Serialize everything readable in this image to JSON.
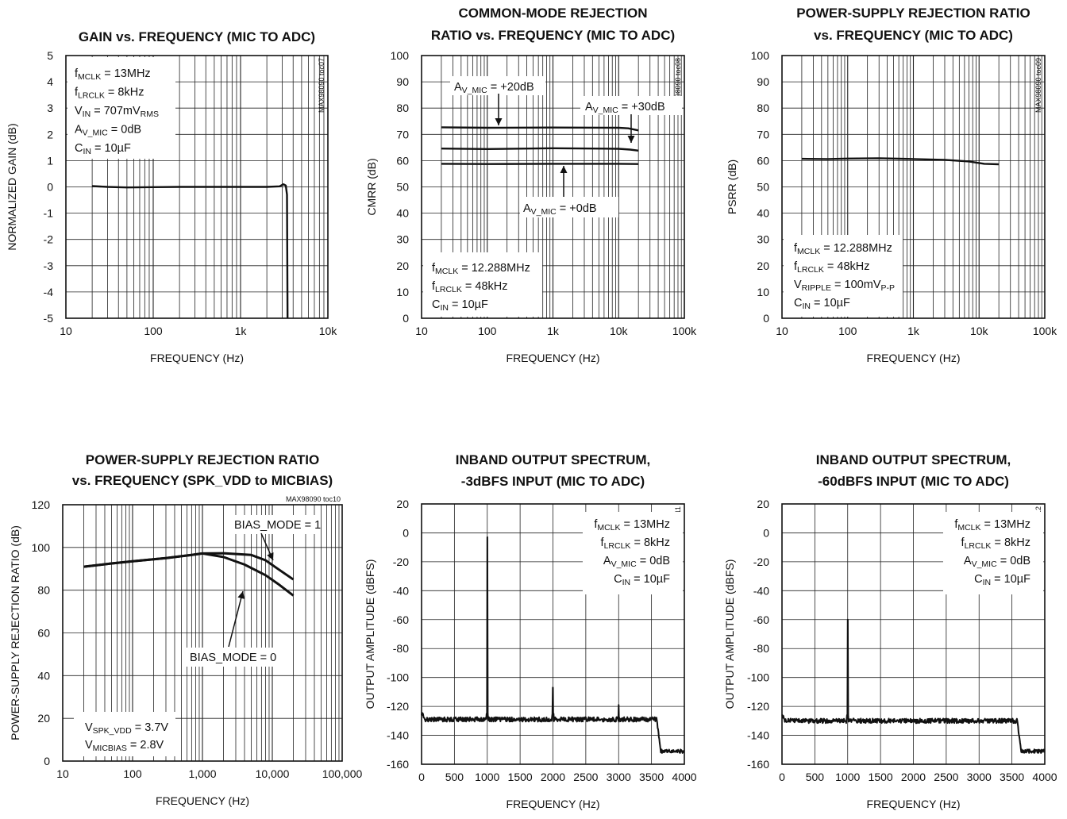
{
  "chart_data": [
    {
      "type": "line",
      "title_lines": [
        "GAIN vs. FREQUENCY (MIC TO ADC)"
      ],
      "xlabel": "FREQUENCY (Hz)",
      "ylabel": "NORMALIZED GAIN (dB)",
      "xscale": "log",
      "xlim": [
        10,
        10000
      ],
      "ylim": [
        -5,
        5
      ],
      "x_tick_labels": [
        "10",
        "100",
        "1k",
        "10k"
      ],
      "y_tick_labels": [
        "-5",
        "-4",
        "-3",
        "-2",
        "-1",
        "0",
        "1",
        "2",
        "3",
        "4",
        "5"
      ],
      "tag": "MAX98090 toc07",
      "grid": true,
      "legend": "none",
      "annotations": [
        {
          "parts": [
            [
              "f",
              ""
            ],
            [
              "MCLK",
              "sub"
            ],
            [
              " = 13MHz",
              ""
            ]
          ]
        },
        {
          "parts": [
            [
              "f",
              ""
            ],
            [
              "LRCLK",
              "sub"
            ],
            [
              " = 8kHz",
              ""
            ]
          ]
        },
        {
          "parts": [
            [
              "V",
              ""
            ],
            [
              "IN",
              "sub"
            ],
            [
              " = 707mV",
              ""
            ],
            [
              "RMS",
              "sub"
            ]
          ]
        },
        {
          "parts": [
            [
              "A",
              ""
            ],
            [
              "V_MIC",
              "sub"
            ],
            [
              " = 0dB",
              ""
            ]
          ]
        },
        {
          "parts": [
            [
              "C",
              ""
            ],
            [
              "IN",
              "sub"
            ],
            [
              " = 10µF",
              ""
            ]
          ]
        }
      ],
      "series": [
        {
          "points": [
            [
              20,
              0.03
            ],
            [
              30,
              0.0
            ],
            [
              50,
              -0.02
            ],
            [
              100,
              -0.01
            ],
            [
              200,
              0.0
            ],
            [
              500,
              0.0
            ],
            [
              1000,
              0.0
            ],
            [
              2000,
              0.0
            ],
            [
              2800,
              0.02
            ],
            [
              3100,
              0.1
            ],
            [
              3300,
              0.05
            ],
            [
              3400,
              -0.3
            ],
            [
              3450,
              -5
            ]
          ]
        }
      ]
    },
    {
      "type": "line",
      "title_lines": [
        "COMMON-MODE REJECTION",
        "RATIO vs. FREQUENCY (MIC TO ADC)"
      ],
      "xlabel": "FREQUENCY (Hz)",
      "ylabel": "CMRR (dB)",
      "xscale": "log",
      "xlim": [
        10,
        100000
      ],
      "ylim": [
        0,
        100
      ],
      "x_tick_labels": [
        "10",
        "100",
        "1k",
        "10k",
        "100k"
      ],
      "y_tick_labels": [
        "0",
        "10",
        "20",
        "30",
        "40",
        "50",
        "60",
        "70",
        "80",
        "90",
        "100"
      ],
      "tag": "MAX98090 toc08",
      "grid": true,
      "legend": "none",
      "annotations_block": [
        {
          "parts": [
            [
              "f",
              ""
            ],
            [
              "MCLK",
              "sub"
            ],
            [
              " = 12.288MHz",
              ""
            ]
          ]
        },
        {
          "parts": [
            [
              "f",
              ""
            ],
            [
              "LRCLK",
              "sub"
            ],
            [
              " = 48kHz",
              ""
            ]
          ]
        },
        {
          "parts": [
            [
              "C",
              ""
            ],
            [
              "IN",
              "sub"
            ],
            [
              " = 10µF",
              ""
            ]
          ]
        }
      ],
      "labels": [
        {
          "parts": [
            [
              "A",
              ""
            ],
            [
              "V_MIC",
              "sub"
            ],
            [
              " = +20dB",
              ""
            ]
          ]
        },
        {
          "parts": [
            [
              "A",
              ""
            ],
            [
              "V_MIC",
              "sub"
            ],
            [
              " = +30dB",
              ""
            ]
          ]
        },
        {
          "parts": [
            [
              "A",
              ""
            ],
            [
              "V_MIC",
              "sub"
            ],
            [
              " = +0dB",
              ""
            ]
          ]
        }
      ],
      "series": [
        {
          "points": [
            [
              20,
              72.7
            ],
            [
              100,
              72.5
            ],
            [
              1000,
              72.6
            ],
            [
              10000,
              72.5
            ],
            [
              14000,
              72.3
            ],
            [
              20000,
              71.5
            ]
          ]
        },
        {
          "points": [
            [
              20,
              64.6
            ],
            [
              100,
              64.4
            ],
            [
              1000,
              64.7
            ],
            [
              10000,
              64.5
            ],
            [
              15000,
              64.2
            ],
            [
              20000,
              63.8
            ]
          ]
        },
        {
          "points": [
            [
              20,
              58.8
            ],
            [
              100,
              58.7
            ],
            [
              1000,
              58.8
            ],
            [
              10000,
              58.8
            ],
            [
              20000,
              58.7
            ]
          ]
        }
      ]
    },
    {
      "type": "line",
      "title_lines": [
        "POWER-SUPPLY REJECTION RATIO",
        "vs. FREQUENCY (MIC TO ADC)"
      ],
      "xlabel": "FREQUENCY (Hz)",
      "ylabel": "PSRR (dB)",
      "xscale": "log",
      "xlim": [
        10,
        100000
      ],
      "ylim": [
        0,
        100
      ],
      "x_tick_labels": [
        "10",
        "100",
        "1k",
        "10k",
        "100k"
      ],
      "y_tick_labels": [
        "0",
        "10",
        "20",
        "30",
        "40",
        "50",
        "60",
        "70",
        "80",
        "90",
        "100"
      ],
      "tag": "MAX98090 toc09",
      "grid": true,
      "legend": "none",
      "annotations": [
        {
          "parts": [
            [
              "f",
              ""
            ],
            [
              "MCLK",
              "sub"
            ],
            [
              " = 12.288MHz",
              ""
            ]
          ]
        },
        {
          "parts": [
            [
              "f",
              ""
            ],
            [
              "LRCLK",
              "sub"
            ],
            [
              " = 48kHz",
              ""
            ]
          ]
        },
        {
          "parts": [
            [
              "V",
              ""
            ],
            [
              "RIPPLE",
              "sub"
            ],
            [
              " = 100mV",
              ""
            ],
            [
              "P-P",
              "sub"
            ]
          ]
        },
        {
          "parts": [
            [
              "C",
              ""
            ],
            [
              "IN",
              "sub"
            ],
            [
              " = 10µF",
              ""
            ]
          ]
        }
      ],
      "series": [
        {
          "points": [
            [
              20,
              60.7
            ],
            [
              50,
              60.6
            ],
            [
              100,
              60.8
            ],
            [
              300,
              60.9
            ],
            [
              1000,
              60.6
            ],
            [
              3000,
              60.3
            ],
            [
              7000,
              59.7
            ],
            [
              12000,
              58.8
            ],
            [
              20000,
              58.6
            ]
          ]
        }
      ]
    },
    {
      "type": "line",
      "title_lines": [
        "POWER-SUPPLY REJECTION RATIO",
        "vs. FREQUENCY (SPK_VDD to MICBIAS)"
      ],
      "xlabel": "FREQUENCY (Hz)",
      "ylabel": "POWER-SUPPLY REJECTION RATIO (dB)",
      "xscale": "log",
      "xlim": [
        10,
        100000
      ],
      "ylim": [
        0,
        120
      ],
      "x_tick_labels": [
        "10",
        "100",
        "1,000",
        "10,000",
        "100,000"
      ],
      "y_tick_labels": [
        "0",
        "20",
        "40",
        "60",
        "80",
        "100",
        "120"
      ],
      "tag": "MAX98090 toc10",
      "grid": true,
      "legend": "none",
      "annotations": [
        {
          "parts": [
            [
              "V",
              ""
            ],
            [
              "SPK_VDD",
              "sub"
            ],
            [
              " = 3.7V",
              ""
            ]
          ]
        },
        {
          "parts": [
            [
              "V",
              ""
            ],
            [
              "MICBIAS",
              "sub"
            ],
            [
              " = 2.8V",
              ""
            ]
          ]
        }
      ],
      "labels": [
        {
          "parts": [
            [
              "BIAS_MODE = 1",
              ""
            ]
          ]
        },
        {
          "parts": [
            [
              "BIAS_MODE = 0",
              ""
            ]
          ]
        }
      ],
      "series": [
        {
          "points": [
            [
              20,
              91
            ],
            [
              50,
              92.5
            ],
            [
              100,
              93.5
            ],
            [
              300,
              95
            ],
            [
              700,
              96.5
            ],
            [
              1000,
              97.2
            ],
            [
              2000,
              97.3
            ],
            [
              5000,
              96.5
            ],
            [
              8000,
              94
            ],
            [
              12000,
              90
            ],
            [
              20000,
              85
            ]
          ]
        },
        {
          "points": [
            [
              20,
              91
            ],
            [
              50,
              92.5
            ],
            [
              100,
              93.5
            ],
            [
              300,
              95
            ],
            [
              700,
              96.5
            ],
            [
              1000,
              97.2
            ],
            [
              2000,
              95.5
            ],
            [
              4000,
              92
            ],
            [
              8000,
              87
            ],
            [
              12000,
              83
            ],
            [
              20000,
              77.5
            ]
          ]
        }
      ]
    },
    {
      "type": "line",
      "title_lines": [
        "INBAND OUTPUT SPECTRUM,",
        "-3dBFS INPUT (MIC TO ADC)"
      ],
      "xlabel": "FREQUENCY (Hz)",
      "ylabel": "OUTPUT AMPLITUDE (dBFS)",
      "xscale": "linear",
      "xlim": [
        0,
        4000
      ],
      "ylim": [
        -160,
        20
      ],
      "x_tick_labels": [
        "0",
        "500",
        "1000",
        "1500",
        "2000",
        "2500",
        "3000",
        "3500",
        "4000"
      ],
      "y_tick_labels": [
        "-160",
        "-140",
        "-120",
        "-100",
        "-80",
        "-60",
        "-40",
        "-20",
        "0",
        "20"
      ],
      "tag": "MAX98089 toc11",
      "grid": true,
      "legend": "none",
      "annotations_right": [
        {
          "parts": [
            [
              "f",
              ""
            ],
            [
              "MCLK",
              "sub"
            ],
            [
              " = 13MHz",
              ""
            ]
          ]
        },
        {
          "parts": [
            [
              "f",
              ""
            ],
            [
              "LRCLK",
              "sub"
            ],
            [
              " = 8kHz",
              ""
            ]
          ]
        },
        {
          "parts": [
            [
              "A",
              ""
            ],
            [
              "V_MIC",
              "sub"
            ],
            [
              " = 0dB",
              ""
            ]
          ]
        },
        {
          "parts": [
            [
              "C",
              ""
            ],
            [
              "IN",
              "sub"
            ],
            [
              " = 10µF",
              ""
            ]
          ]
        }
      ],
      "noise": {
        "floor": -129,
        "spikes": [
          [
            1000,
            -3
          ],
          [
            2000,
            -107
          ],
          [
            3000,
            -119
          ]
        ],
        "rolloff_start": 3580,
        "rolloff_end": 3640,
        "tail_level": -151
      }
    },
    {
      "type": "line",
      "title_lines": [
        "INBAND OUTPUT SPECTRUM,",
        "-60dBFS INPUT (MIC TO ADC)"
      ],
      "xlabel": "FREQUENCY (Hz)",
      "ylabel": "OUTPUT AMPLITUDE (dBFS)",
      "xscale": "linear",
      "xlim": [
        0,
        4000
      ],
      "ylim": [
        -160,
        20
      ],
      "x_tick_labels": [
        "0",
        "500",
        "1000",
        "1500",
        "2000",
        "2500",
        "3000",
        "3500",
        "4000"
      ],
      "y_tick_labels": [
        "-160",
        "-140",
        "-120",
        "-100",
        "-80",
        "-60",
        "-40",
        "-20",
        "0",
        "20"
      ],
      "tag": "MAX98090 toc12",
      "grid": true,
      "legend": "none",
      "annotations_right": [
        {
          "parts": [
            [
              "f",
              ""
            ],
            [
              "MCLK",
              "sub"
            ],
            [
              " = 13MHz",
              ""
            ]
          ]
        },
        {
          "parts": [
            [
              "f",
              ""
            ],
            [
              "LRCLK",
              "sub"
            ],
            [
              " = 8kHz",
              ""
            ]
          ]
        },
        {
          "parts": [
            [
              "A",
              ""
            ],
            [
              "V_MIC",
              "sub"
            ],
            [
              " = 0dB",
              ""
            ]
          ]
        },
        {
          "parts": [
            [
              "C",
              ""
            ],
            [
              "IN",
              "sub"
            ],
            [
              " = 10µF",
              ""
            ]
          ]
        }
      ],
      "noise": {
        "floor": -130,
        "spikes": [
          [
            1000,
            -60
          ]
        ],
        "rolloff_start": 3580,
        "rolloff_end": 3640,
        "tail_level": -151
      }
    }
  ]
}
